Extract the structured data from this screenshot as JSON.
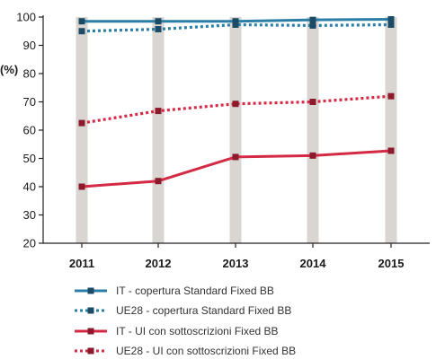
{
  "chart_data": {
    "type": "line",
    "ylabel": "(%)",
    "xlabel": "",
    "ylim": [
      20,
      100
    ],
    "yticks": [
      20,
      30,
      40,
      50,
      60,
      70,
      80,
      90,
      100
    ],
    "categories": [
      "2011",
      "2012",
      "2013",
      "2014",
      "2015"
    ],
    "grid": false,
    "category_bands": true,
    "legend_position": "bottom",
    "series": [
      {
        "name": "IT - copertura Standard Fixed BB",
        "values": [
          98.5,
          98.5,
          98.5,
          99.0,
          99.2
        ],
        "color": "#2b7fa6",
        "style": "solid"
      },
      {
        "name": "UE28 - copertura Standard Fixed BB",
        "values": [
          95.0,
          95.7,
          97.3,
          97.0,
          97.3
        ],
        "color": "#2b7fa6",
        "style": "dotted"
      },
      {
        "name": "IT - UI con sottoscrizioni Fixed BB",
        "values": [
          40.0,
          42.0,
          50.5,
          51.0,
          52.7
        ],
        "color": "#d42a45",
        "style": "solid"
      },
      {
        "name": "UE28 - UI con sottoscrizioni Fixed BB",
        "values": [
          62.5,
          66.8,
          69.3,
          70.0,
          72.0
        ],
        "color": "#d42a45",
        "style": "dotted"
      }
    ]
  },
  "colors": {
    "band": "#d9d5d0",
    "axis": "#222222"
  }
}
